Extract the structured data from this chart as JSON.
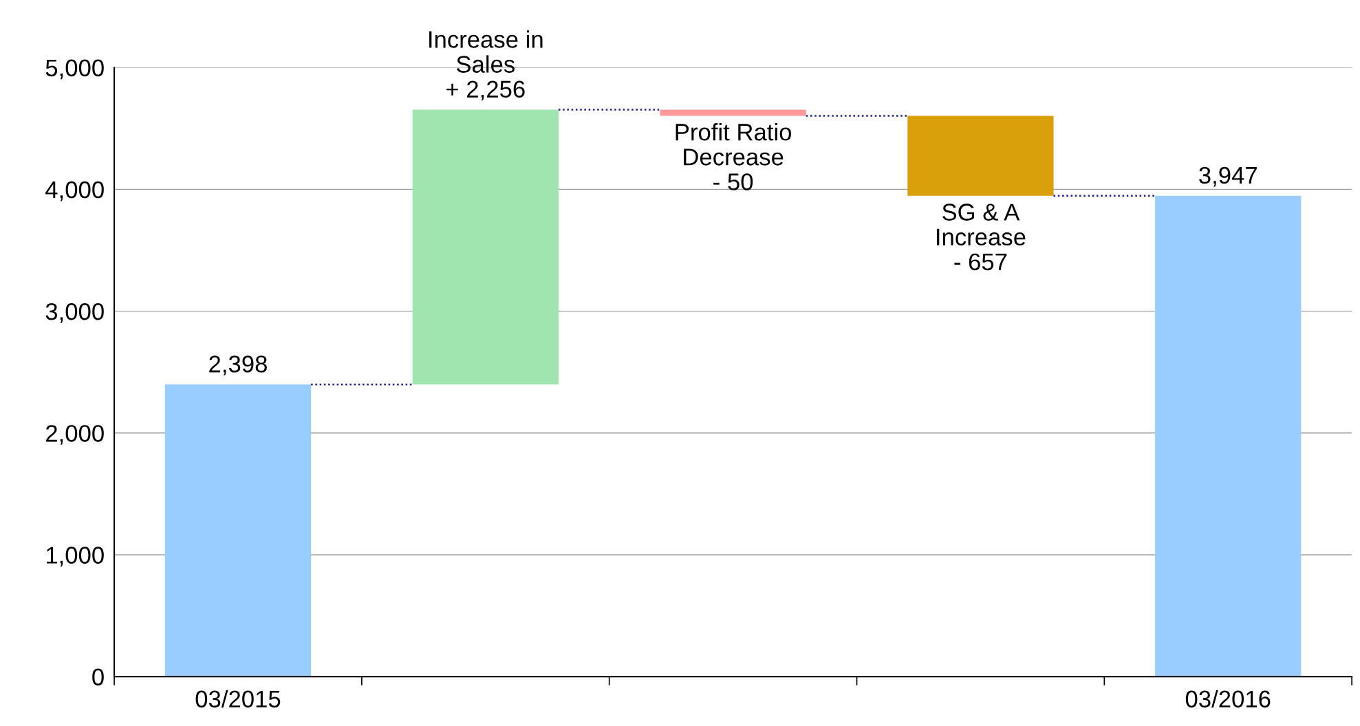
{
  "chart_data": {
    "type": "bar",
    "categories": [
      "03/2015",
      null,
      null,
      null,
      "03/2016"
    ],
    "values": [
      2398,
      2256,
      -50,
      -657,
      3947
    ],
    "base": [
      0,
      2398,
      4654,
      4604,
      0
    ],
    "colors": [
      "#99ccff",
      "#a0e4b0",
      "#ff9999",
      "#daa00c",
      "#99ccff"
    ],
    "value_labels": [
      "2,398",
      "Increase in\nSales\n+ 2,256",
      "Profit Ratio\nDecrease\n- 50",
      "SG & A\nIncrease\n- 657",
      "3,947"
    ],
    "ylim": [
      0,
      5000
    ],
    "yticks": [
      {
        "value": 0,
        "label": "0"
      },
      {
        "value": 1000,
        "label": "1,000"
      },
      {
        "value": 2000,
        "label": "2,000"
      },
      {
        "value": 3000,
        "label": "3,000"
      },
      {
        "value": 4000,
        "label": "4,000"
      },
      {
        "value": 5000,
        "label": "5,000"
      }
    ],
    "grid": "y",
    "legend": false
  }
}
